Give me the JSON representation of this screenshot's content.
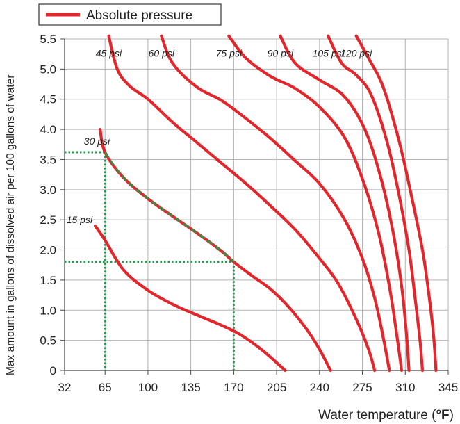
{
  "chart_data": {
    "type": "line",
    "title": "",
    "xlabel": "Water temperature (",
    "xlabel_unit": "°F",
    "xlabel_close": ")",
    "ylabel": "Max amount in gallons of dissolved air per 100 gallons of water",
    "xlim": [
      32,
      345
    ],
    "ylim": [
      0,
      5.5
    ],
    "x_ticks": [
      32,
      65,
      100,
      135,
      170,
      205,
      240,
      275,
      310,
      345
    ],
    "y_ticks": [
      "0",
      "0.5",
      "1.0",
      "1.5",
      "2.0",
      "2.5",
      "3.0",
      "3.5",
      "4.0",
      "4.5",
      "5.0",
      "5.5"
    ],
    "grid": true,
    "legend": {
      "placement": "top-left",
      "entries": [
        "Absolute pressure"
      ]
    },
    "colors": {
      "series": "#e3262b",
      "guide": "#1f9a48",
      "grid": "#b3b3b3"
    },
    "series": [
      {
        "name": "15 psi",
        "x": [
          57,
          65,
          80,
          100,
          120,
          140,
          160,
          175,
          190,
          200,
          212
        ],
        "y": [
          2.4,
          2.16,
          1.67,
          1.33,
          1.1,
          0.92,
          0.75,
          0.6,
          0.39,
          0.22,
          0
        ]
      },
      {
        "name": "30 psi",
        "x": [
          61,
          65,
          80,
          100,
          120,
          140,
          160,
          170,
          185,
          200,
          215,
          230,
          240,
          249
        ],
        "y": [
          4.0,
          3.62,
          3.2,
          2.85,
          2.56,
          2.28,
          1.98,
          1.8,
          1.57,
          1.35,
          1.05,
          0.67,
          0.35,
          0
        ]
      },
      {
        "name": "45 psi",
        "x": [
          68,
          75,
          85,
          100,
          120,
          140,
          160,
          180,
          200,
          220,
          240,
          255,
          270,
          280,
          285
        ],
        "y": [
          5.55,
          5.0,
          4.72,
          4.5,
          4.12,
          3.78,
          3.44,
          3.1,
          2.73,
          2.34,
          1.86,
          1.45,
          0.85,
          0.35,
          0
        ]
      },
      {
        "name": "60 psi",
        "x": [
          111,
          120,
          140,
          160,
          180,
          200,
          220,
          240,
          260,
          275,
          285,
          292,
          297
        ],
        "y": [
          5.55,
          5.1,
          4.7,
          4.48,
          4.18,
          3.85,
          3.48,
          3.1,
          2.52,
          1.86,
          1.2,
          0.55,
          0
        ]
      },
      {
        "name": "75 psi",
        "x": [
          166,
          180,
          200,
          220,
          240,
          260,
          275,
          288,
          297,
          303,
          307
        ],
        "y": [
          5.55,
          5.18,
          4.88,
          4.68,
          4.37,
          3.88,
          3.18,
          2.3,
          1.4,
          0.6,
          0
        ]
      },
      {
        "name": "90 psi",
        "x": [
          208,
          220,
          240,
          260,
          277,
          290,
          300,
          307,
          311,
          313
        ],
        "y": [
          5.55,
          5.1,
          4.82,
          4.55,
          4.0,
          3.2,
          2.3,
          1.4,
          0.6,
          0
        ]
      },
      {
        "name": "105 psi",
        "x": [
          247,
          258,
          270,
          282,
          295,
          305,
          313,
          318,
          322,
          324
        ],
        "y": [
          5.55,
          5.1,
          4.9,
          4.58,
          3.8,
          2.9,
          2.0,
          1.2,
          0.5,
          0
        ]
      },
      {
        "name": "120 psi",
        "x": [
          270,
          280,
          292,
          305,
          315,
          324,
          329,
          333,
          335
        ],
        "y": [
          5.55,
          5.18,
          4.7,
          3.8,
          2.9,
          2.0,
          1.3,
          0.6,
          0
        ]
      }
    ],
    "annotation_guide": {
      "from": [
        65,
        3.62
      ],
      "to": [
        170,
        1.8
      ],
      "x_lines": [
        65,
        170
      ],
      "y_lines": [
        3.62,
        1.8
      ],
      "style": "dotted"
    }
  }
}
